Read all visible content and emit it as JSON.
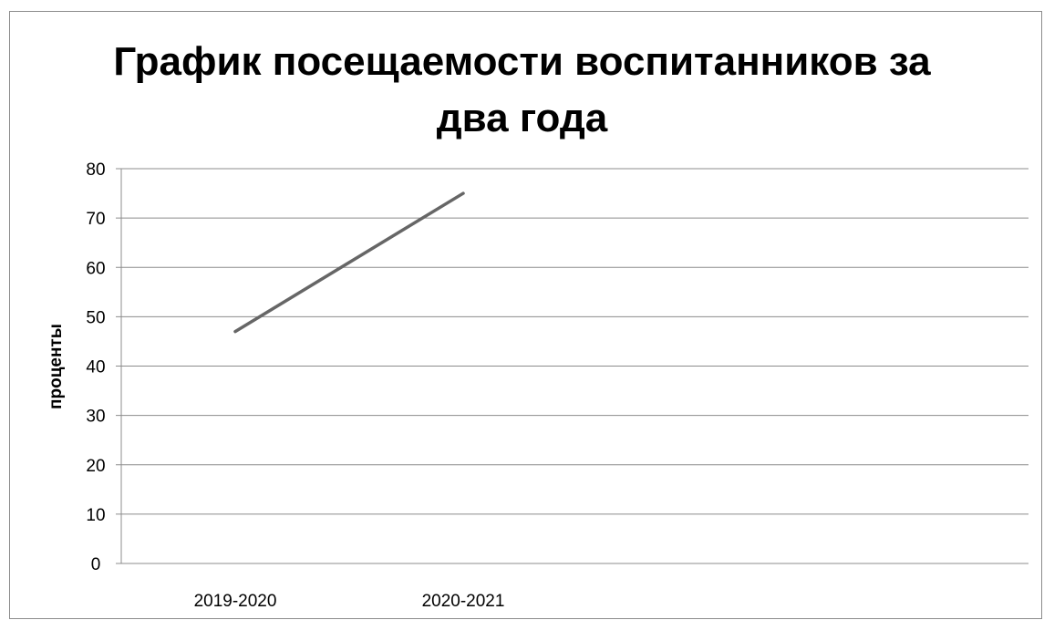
{
  "chart_data": {
    "type": "line",
    "title_lines": [
      "График посещаемости воспитанников за",
      "два  года"
    ],
    "ylabel": "проценты",
    "xlabel": "",
    "categories": [
      "2019-2020",
      "2020-2021"
    ],
    "series": [
      {
        "values": [
          47,
          75
        ],
        "color": "#666666"
      }
    ],
    "ylim": [
      0,
      80
    ],
    "yticks": [
      0,
      10,
      20,
      30,
      40,
      50,
      60,
      70,
      80
    ],
    "grid": true,
    "legend": "none"
  }
}
